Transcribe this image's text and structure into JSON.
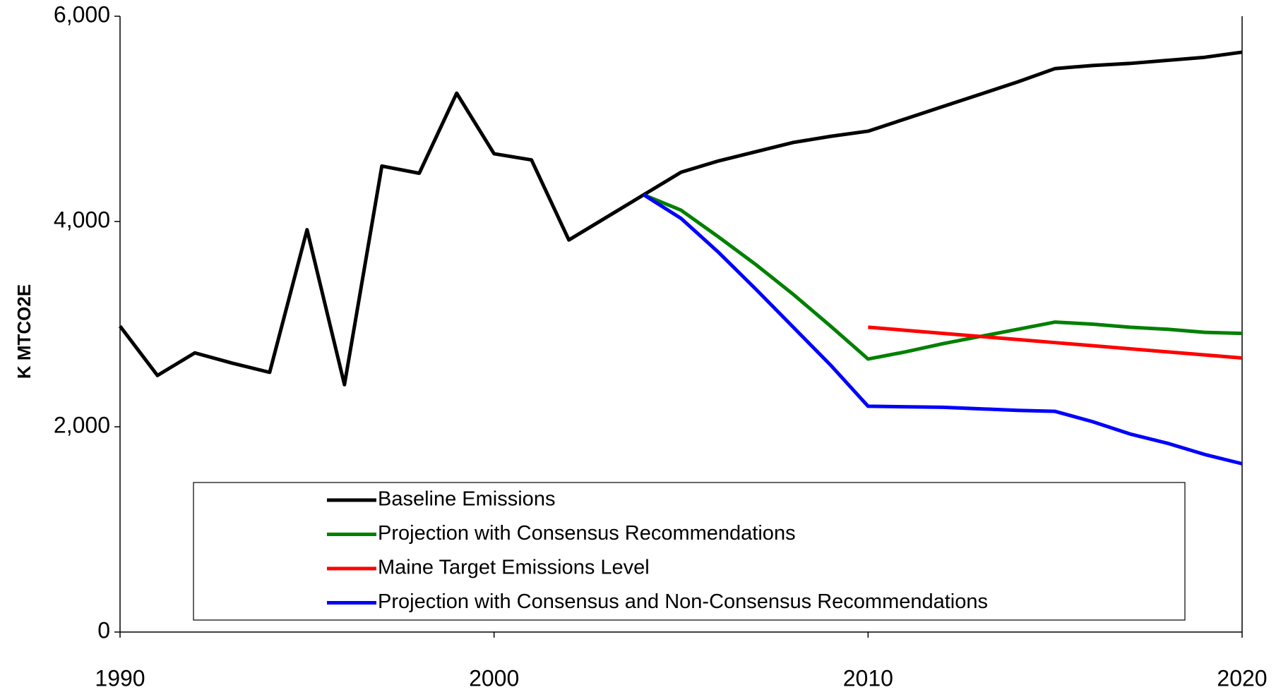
{
  "chart_data": {
    "type": "line",
    "y_label": "K MTCO2E",
    "xlim": [
      1990,
      2020
    ],
    "xticks": [
      1990,
      2000,
      2010,
      2020
    ],
    "ylim": [
      0,
      6000
    ],
    "yticks": [
      0,
      {
        "value": 2000,
        "label": "2,000"
      },
      {
        "value": 4000,
        "label": "4,000"
      },
      {
        "value": 6000,
        "label": "6,000"
      }
    ],
    "series": [
      {
        "name": "Baseline Emissions",
        "color": "#000000",
        "x": [
          1990,
          1991,
          1992,
          1993,
          1994,
          1995,
          1996,
          1997,
          1998,
          1999,
          2000,
          2001,
          2002,
          2003,
          2004,
          2005,
          2006,
          2007,
          2008,
          2009,
          2010,
          2011,
          2012,
          2013,
          2014,
          2015,
          2016,
          2017,
          2018,
          2019,
          2020
        ],
        "values": [
          2980,
          2500,
          2720,
          2620,
          2530,
          3920,
          2410,
          4540,
          4470,
          5250,
          4660,
          4600,
          3820,
          4040,
          4260,
          4480,
          4590,
          4680,
          4770,
          4830,
          4880,
          5000,
          5120,
          5240,
          5360,
          5490,
          5520,
          5540,
          5570,
          5600,
          5650
        ]
      },
      {
        "name": "Projection with Consensus Recommendations",
        "color": "#008000",
        "x": [
          2004,
          2005,
          2006,
          2007,
          2008,
          2009,
          2010,
          2011,
          2012,
          2013,
          2014,
          2015,
          2016,
          2017,
          2018,
          2019,
          2020
        ],
        "values": [
          4260,
          4110,
          3850,
          3580,
          3290,
          2980,
          2660,
          2730,
          2810,
          2880,
          2950,
          3020,
          3000,
          2970,
          2950,
          2920,
          2910
        ]
      },
      {
        "name": "Maine Target Emissions Level",
        "color": "#ff0000",
        "x": [
          2010,
          2015,
          2020
        ],
        "values": [
          2970,
          2820,
          2670
        ]
      },
      {
        "name": "Projection with Consensus and Non-Consensus Recommendations",
        "color": "#0000ff",
        "x": [
          2004,
          2005,
          2006,
          2007,
          2008,
          2009,
          2010,
          2012,
          2014,
          2015,
          2016,
          2017,
          2018,
          2019,
          2020
        ],
        "values": [
          4260,
          4030,
          3700,
          3340,
          2970,
          2600,
          2200,
          2190,
          2160,
          2150,
          2050,
          1930,
          1840,
          1730,
          1640
        ]
      }
    ]
  }
}
